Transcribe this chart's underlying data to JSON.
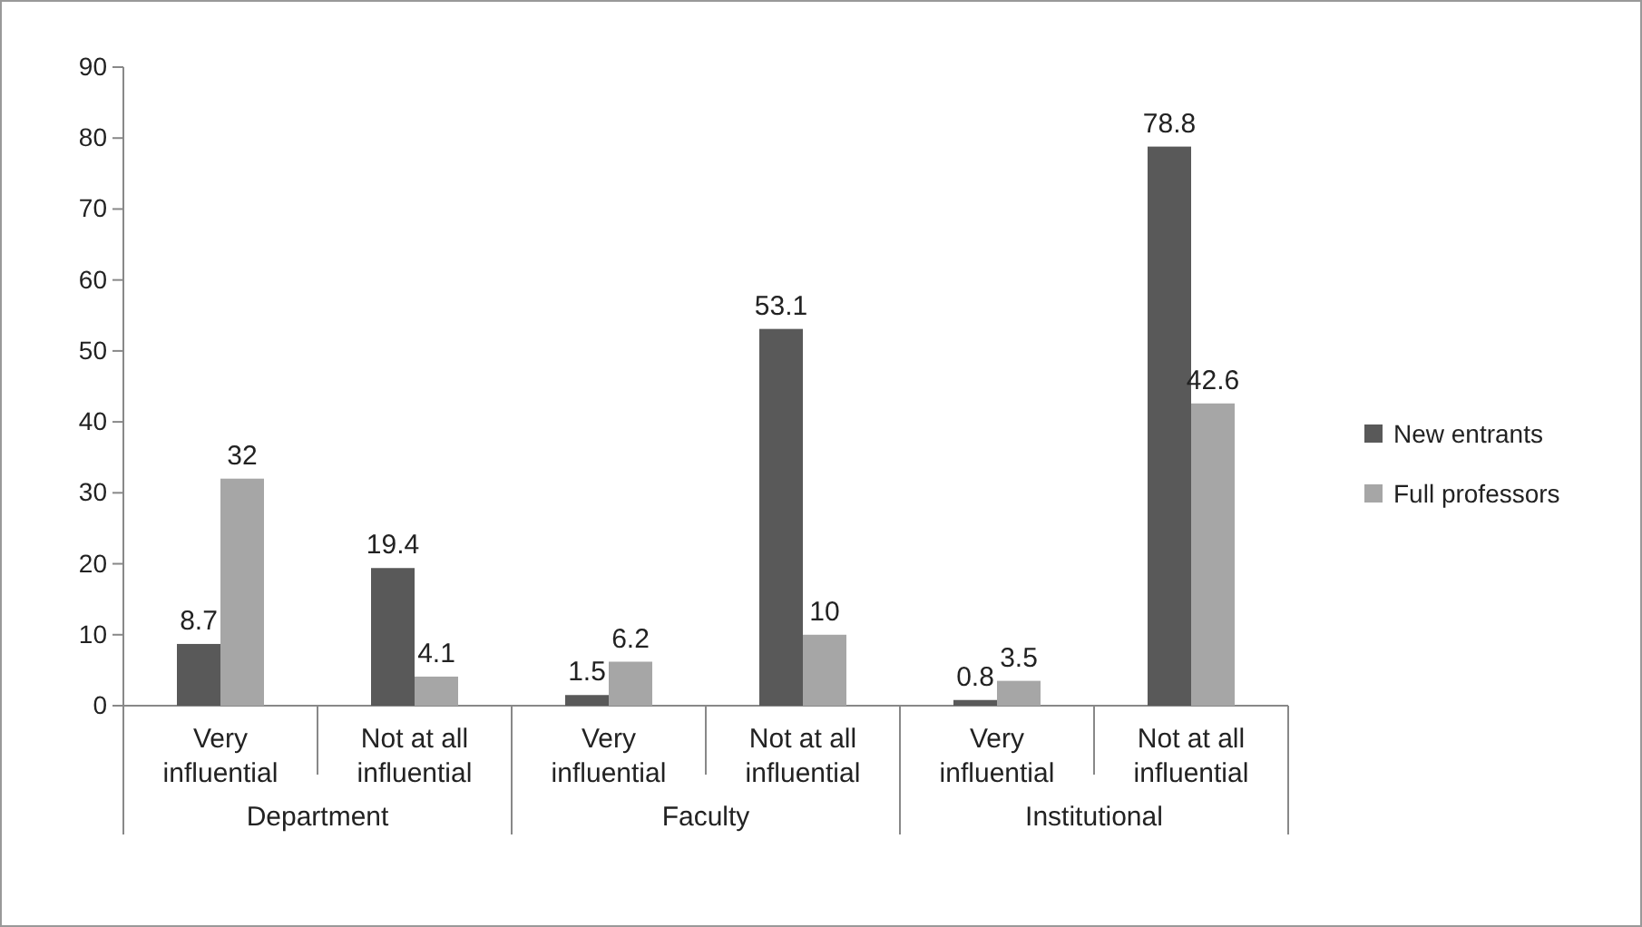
{
  "chart_data": {
    "type": "bar",
    "categories": [
      "Very influential",
      "Not at all influential",
      "Very influential",
      "Not at all influential",
      "Very influential",
      "Not at all influential"
    ],
    "series": [
      {
        "name": "New entrants",
        "color": "#595959",
        "values": [
          8.7,
          19.4,
          1.5,
          53.1,
          0.8,
          78.8
        ]
      },
      {
        "name": "Full professors",
        "color": "#a6a6a6",
        "values": [
          32,
          4.1,
          6.2,
          10,
          3.5,
          42.6
        ]
      }
    ],
    "ylim": [
      0,
      90
    ],
    "yticks": [
      0,
      10,
      20,
      30,
      40,
      50,
      60,
      70,
      80,
      90
    ],
    "grid": false,
    "legend": "right",
    "data_labels": true,
    "annotations": [
      "Department",
      "Faculty",
      "Institutional"
    ]
  }
}
